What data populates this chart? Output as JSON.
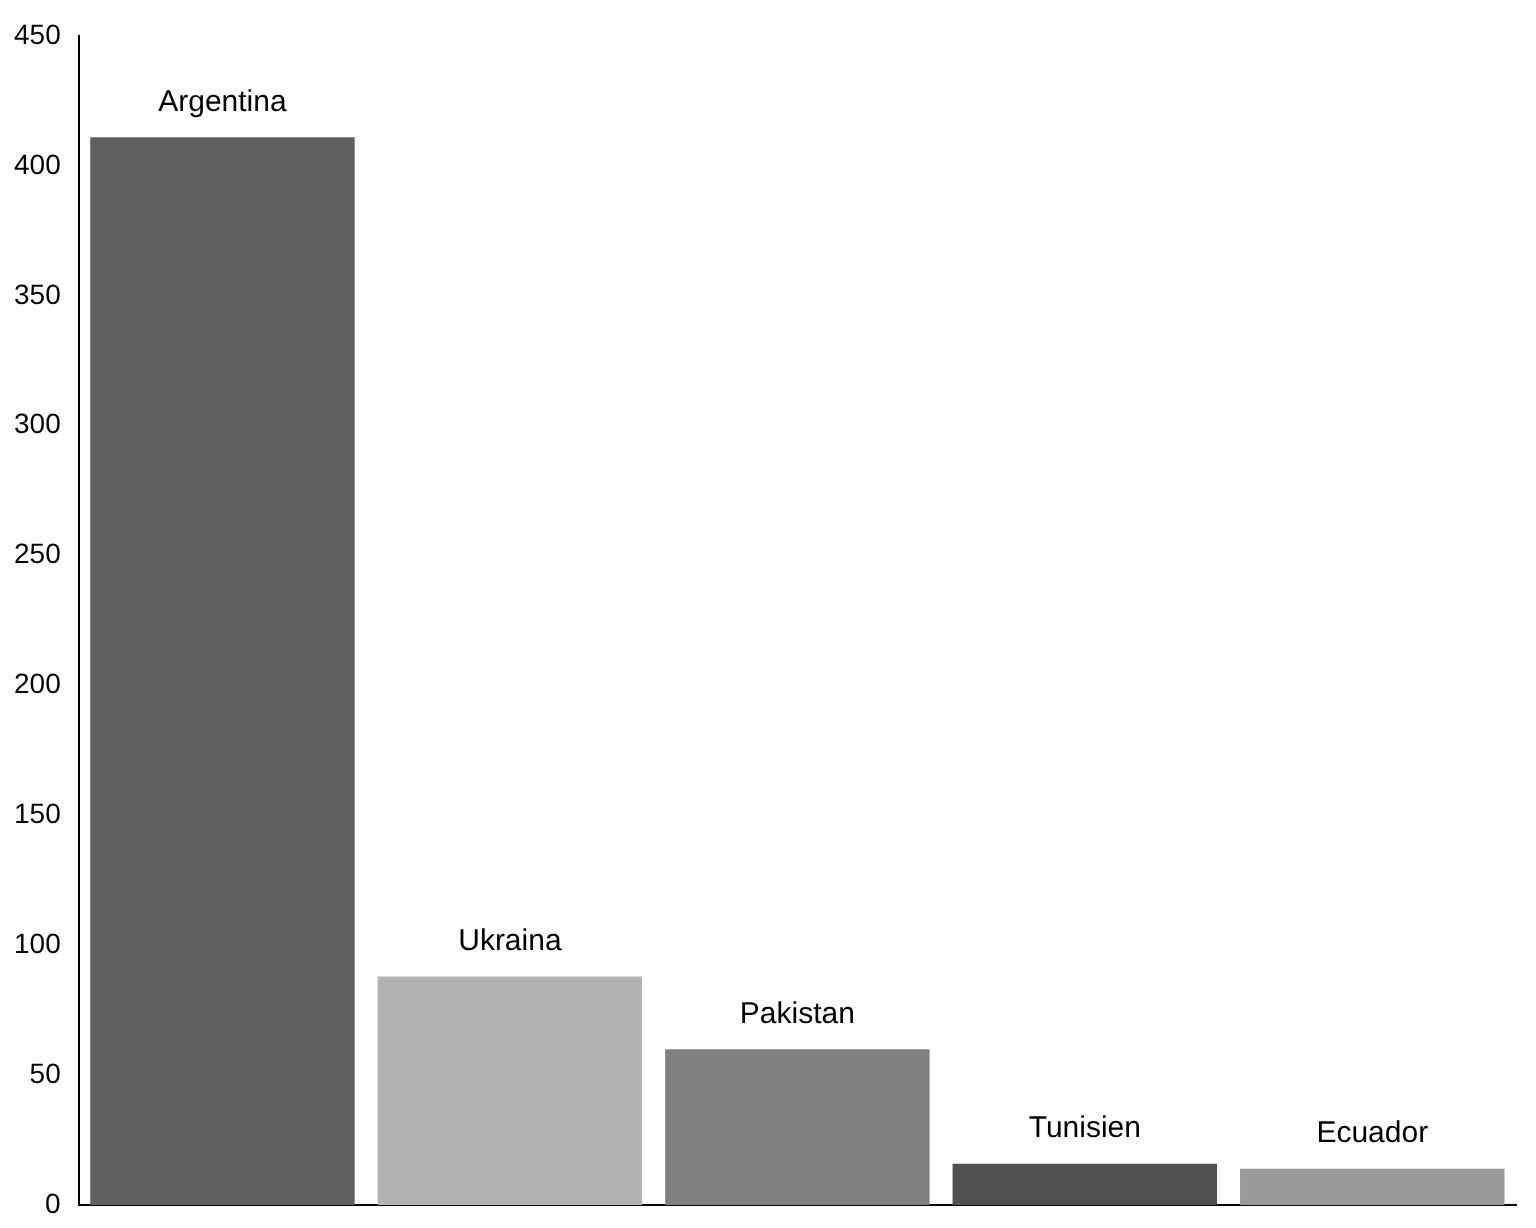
{
  "chart_data": {
    "type": "bar",
    "categories": [
      "Argentina",
      "Ukraina",
      "Pakistan",
      "Tunisien",
      "Ecuador"
    ],
    "values": [
      411,
      88,
      60,
      16,
      14
    ],
    "colors": [
      "#606060",
      "#b2b2b2",
      "#808080",
      "#505050",
      "#999999"
    ],
    "ylim": [
      0,
      450
    ],
    "yticks": [
      0,
      50,
      100,
      150,
      200,
      250,
      300,
      350,
      400,
      450
    ],
    "grid": false,
    "legend": false,
    "tick_labels": "y"
  }
}
